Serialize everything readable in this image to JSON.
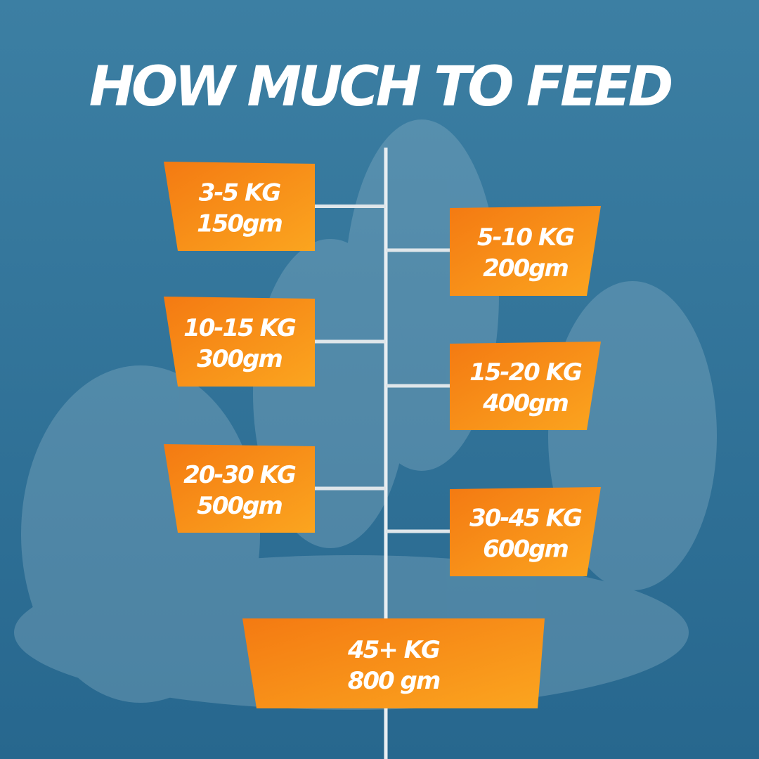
{
  "title": "HOW MUCH TO FEED",
  "items": [
    {
      "weight": "3-5 KG",
      "amount": "150gm"
    },
    {
      "weight": "5-10 KG",
      "amount": "200gm"
    },
    {
      "weight": "10-15 KG",
      "amount": "300gm"
    },
    {
      "weight": "15-20 KG",
      "amount": "400gm"
    },
    {
      "weight": "20-30 KG",
      "amount": "500gm"
    },
    {
      "weight": "30-45 KG",
      "amount": "600gm"
    },
    {
      "weight": "45+ KG",
      "amount": "800 gm"
    }
  ]
}
